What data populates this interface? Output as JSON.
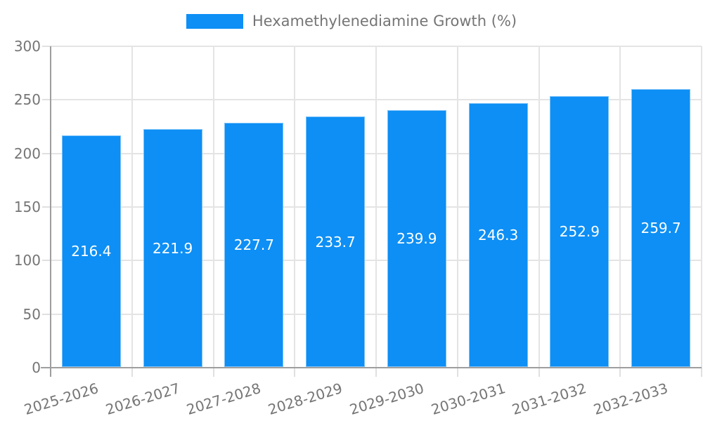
{
  "legend": {
    "label": "Hexamethylenediamine Growth (%)"
  },
  "chart_data": {
    "type": "bar",
    "title": "Hexamethylenediamine Growth (%)",
    "series_name": "Hexamethylenediamine Growth (%)",
    "categories": [
      "2025-2026",
      "2026-2027",
      "2027-2028",
      "2028-2029",
      "2029-2030",
      "2030-2031",
      "2031-2032",
      "2032-2033"
    ],
    "values": [
      216.4,
      221.9,
      227.7,
      233.7,
      239.9,
      246.3,
      252.9,
      259.7
    ],
    "data_labels": [
      "216.4",
      "221.9",
      "227.7",
      "233.7",
      "239.9",
      "246.3",
      "252.9",
      "259.7"
    ],
    "xlabel": "",
    "ylabel": "",
    "ylim": [
      0,
      300
    ],
    "ytick_step": 50,
    "yticks": [
      "0",
      "50",
      "100",
      "150",
      "200",
      "250",
      "300"
    ],
    "grid": true,
    "legend_position": "top",
    "bar_color": "#0D8FF5",
    "bar_label_color": "#ffffff",
    "axis_color": "#9e9e9e",
    "grid_color": "#e4e4e4",
    "tick_color": "#e0e0e0",
    "text_color": "#757575"
  }
}
